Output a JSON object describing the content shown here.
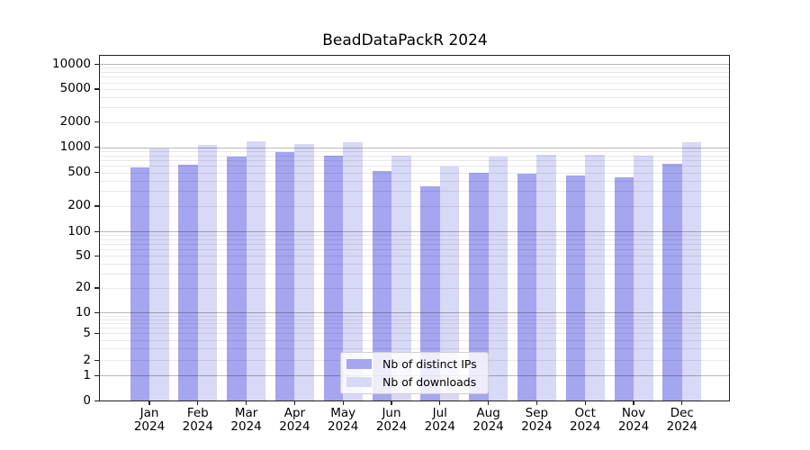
{
  "title": "BeadDataPackR 2024",
  "colors": {
    "bar_distinct_ips": "#a5a5f0",
    "bar_downloads": "#d8d8f7",
    "grid_major": "rgba(0,0,0,0.28)",
    "grid_minor": "rgba(0,0,0,0.085)",
    "spine": "#222222",
    "text": "#000000",
    "legend_border": "#d0d0d0"
  },
  "chart_data": {
    "type": "bar",
    "title": "BeadDataPackR 2024",
    "months": [
      "Jan",
      "Feb",
      "Mar",
      "Apr",
      "May",
      "Jun",
      "Jul",
      "Aug",
      "Sep",
      "Oct",
      "Nov",
      "Dec"
    ],
    "year": "2024",
    "series": [
      {
        "name": "Nb of distinct IPs",
        "color": "#a5a5f0",
        "values": [
          570,
          620,
          775,
          865,
          785,
          520,
          345,
          490,
          480,
          465,
          435,
          635
        ]
      },
      {
        "name": "Nb of downloads",
        "color": "#d8d8f7",
        "values": [
          960,
          1060,
          1170,
          1100,
          1145,
          800,
          595,
          780,
          810,
          810,
          790,
          1140
        ]
      }
    ],
    "yscale": "log",
    "ylim": [
      0,
      15000
    ],
    "y_tick_labels": [
      "10000",
      "5000",
      "2000",
      "1000",
      "500",
      "200",
      "100",
      "50",
      "20",
      "10",
      "5",
      "2",
      "1",
      "0"
    ],
    "grid": true,
    "legend_position": "lower center"
  }
}
